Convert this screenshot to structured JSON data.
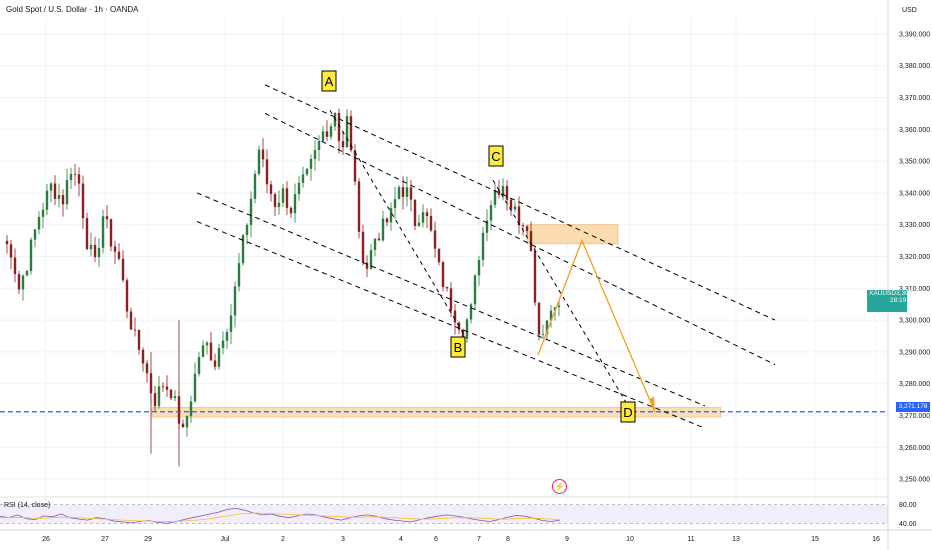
{
  "header": {
    "symbol_title": "Gold Spot / U.S. Dollar · 1h · OANDA",
    "currency": "USD"
  },
  "colors": {
    "up": "#26a69a",
    "down": "#ef5350",
    "candle": "#2b7d3f",
    "candle_down": "#8a2020",
    "wave_line": "#000000",
    "projection": "#f0a020",
    "zone_fill": "#fbd9a8",
    "support_line": "#2962ff",
    "price_tag_current": "#26a69a",
    "price_tag_support": "#2962ff",
    "label_fill": "#ffeb3b",
    "rsi_line": "#7e57c2",
    "rsi_ma": "#fbc02d",
    "rsi_band": "#ede7f6"
  },
  "icons": [
    "lightning-icon"
  ],
  "chart_data": [
    {
      "type": "line",
      "chart_kind": "candlestick",
      "title": "Gold Spot / U.S. Dollar · 1h · OANDA",
      "instrument": "XAUUSD",
      "y_unit": "USD",
      "ylim": [
        3245,
        3395
      ],
      "y_ticks": [
        "3,250.000",
        "3,260.000",
        "3,270.000",
        "3,280.000",
        "3,290.000",
        "3,300.000",
        "3,310.000",
        "3,320.000",
        "3,330.000",
        "3,340.000",
        "3,350.000",
        "3,360.000",
        "3,370.000",
        "3,380.000",
        "3,390.000"
      ],
      "x_ticks": [
        "26",
        "27",
        "29",
        "Jul",
        "2",
        "3",
        "4",
        "6",
        "7",
        "8",
        "9",
        "10",
        "11",
        "13",
        "15",
        "16"
      ],
      "close_path": [
        [
          0,
          3325
        ],
        [
          2,
          3322
        ],
        [
          4,
          3310
        ],
        [
          6,
          3318
        ],
        [
          9,
          3333
        ],
        [
          12,
          3342
        ],
        [
          15,
          3338
        ],
        [
          17,
          3348
        ],
        [
          19,
          3343
        ],
        [
          21,
          3325
        ],
        [
          23,
          3317
        ],
        [
          25,
          3333
        ],
        [
          27,
          3325
        ],
        [
          29,
          3319
        ],
        [
          31,
          3304
        ],
        [
          33,
          3294
        ],
        [
          35,
          3288
        ],
        [
          37,
          3278
        ],
        [
          38,
          3275
        ],
        [
          40,
          3280
        ],
        [
          42,
          3278
        ],
        [
          44,
          3269
        ],
        [
          45,
          3264
        ],
        [
          47,
          3276
        ],
        [
          49,
          3289
        ],
        [
          51,
          3292
        ],
        [
          53,
          3287
        ],
        [
          55,
          3296
        ],
        [
          57,
          3302
        ],
        [
          59,
          3317
        ],
        [
          61,
          3331
        ],
        [
          63,
          3346
        ],
        [
          64,
          3354
        ],
        [
          66,
          3343
        ],
        [
          68,
          3337
        ],
        [
          70,
          3340
        ],
        [
          72,
          3335
        ],
        [
          74,
          3341
        ],
        [
          76,
          3345
        ],
        [
          78,
          3352
        ],
        [
          80,
          3359
        ],
        [
          82,
          3362
        ],
        [
          83,
          3366
        ],
        [
          84,
          3358
        ],
        [
          85,
          3355
        ],
        [
          86,
          3363
        ],
        [
          87,
          3352
        ],
        [
          88,
          3345
        ],
        [
          89,
          3325
        ],
        [
          91,
          3317
        ],
        [
          93,
          3326
        ],
        [
          95,
          3329
        ],
        [
          97,
          3333
        ],
        [
          99,
          3342
        ],
        [
          101,
          3340
        ],
        [
          103,
          3331
        ],
        [
          105,
          3336
        ],
        [
          107,
          3327
        ],
        [
          109,
          3316
        ],
        [
          111,
          3308
        ],
        [
          113,
          3302
        ],
        [
          115,
          3297
        ],
        [
          117,
          3303
        ],
        [
          119,
          3321
        ],
        [
          121,
          3334
        ],
        [
          123,
          3341
        ],
        [
          125,
          3343
        ],
        [
          127,
          3336
        ],
        [
          129,
          3332
        ],
        [
          131,
          3331
        ],
        [
          132,
          3321
        ],
        [
          133,
          3308
        ],
        [
          134,
          3296
        ],
        [
          136,
          3300
        ],
        [
          138,
          3307
        ],
        [
          139,
          3303
        ]
      ],
      "pattern_labels": [
        {
          "label": "A",
          "price": 3366
        },
        {
          "label": "B",
          "price": 3296
        },
        {
          "label": "C",
          "price": 3344
        },
        {
          "label": "D",
          "price": 3271
        }
      ],
      "projection_path_prices": [
        3289,
        3325,
        3271
      ],
      "resistance_zone": [
        3324,
        3330
      ],
      "support_zone": [
        3269.5,
        3272.5
      ],
      "support_level": 3271.178,
      "current_price": 3305.88,
      "countdown": "28:19",
      "price_tags": {
        "current_label": "3,305.880",
        "current_symbol": "XAUUSD",
        "support_label": "3,271.178"
      },
      "rsi": {
        "label": "RSI (14, close)",
        "levels": [
          "80.00",
          "40.00"
        ],
        "ylim": [
          30,
          90
        ],
        "values": [
          55,
          52,
          58,
          50,
          48,
          56,
          54,
          60,
          52,
          49,
          47,
          52,
          50,
          45,
          43,
          41,
          44,
          46,
          42,
          40,
          43,
          48,
          52,
          56,
          60,
          64,
          70,
          72,
          68,
          62,
          58,
          60,
          55,
          52,
          56,
          60,
          58,
          54,
          50,
          47,
          52,
          56,
          58,
          55,
          50,
          47,
          45,
          43,
          48,
          52,
          55,
          58,
          56,
          53,
          49,
          46,
          44,
          48,
          53,
          57,
          55,
          51,
          46,
          44,
          47
        ],
        "ma_values": [
          52,
          52,
          53,
          52,
          51,
          51,
          52,
          53,
          53,
          52,
          51,
          50,
          49,
          48,
          47,
          46,
          45,
          45,
          44,
          44,
          44,
          45,
          46,
          48,
          50,
          53,
          56,
          59,
          61,
          62,
          62,
          61,
          60,
          59,
          58,
          57,
          57,
          56,
          55,
          54,
          53,
          53,
          54,
          54,
          53,
          52,
          51,
          50,
          49,
          49,
          50,
          51,
          52,
          52,
          52,
          51,
          50,
          49,
          49,
          50,
          51,
          51,
          50,
          49,
          48
        ]
      }
    }
  ]
}
